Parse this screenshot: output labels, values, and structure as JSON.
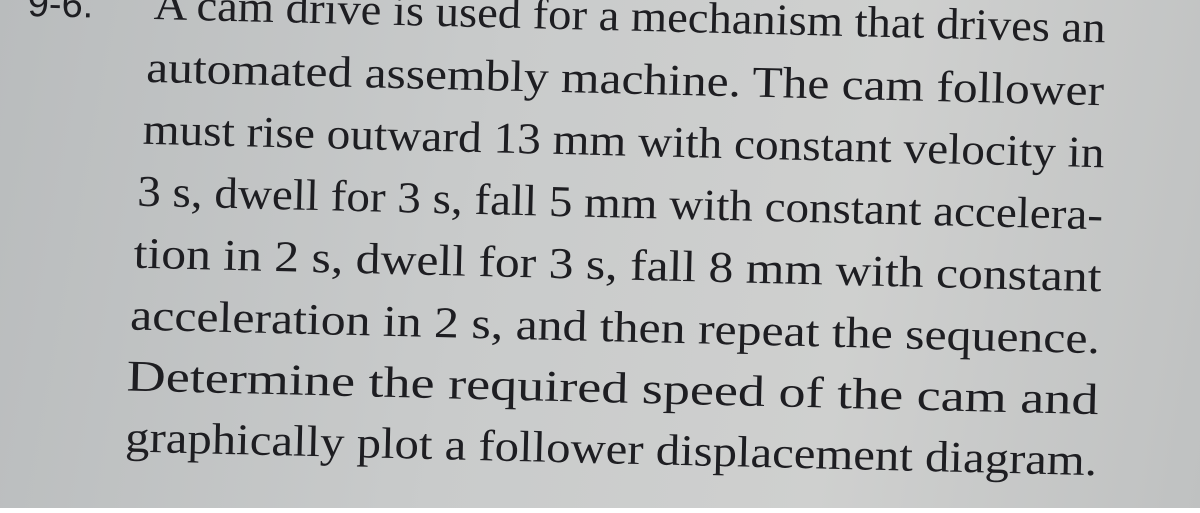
{
  "problem": {
    "number": "9-6.",
    "lines": [
      "A cam drive is used for a mechanism that drives an",
      "automated assembly machine. The cam follower",
      "must rise outward 13 mm with constant velocity in",
      "3 s, dwell for 3 s, fall 5 mm with constant accelera-",
      "tion in 2 s, dwell for 3 s, fall 8 mm with constant",
      "acceleration in 2 s, and then repeat the sequence.",
      "Determine the required speed of the cam and",
      "graphically plot a follower displacement diagram."
    ]
  }
}
